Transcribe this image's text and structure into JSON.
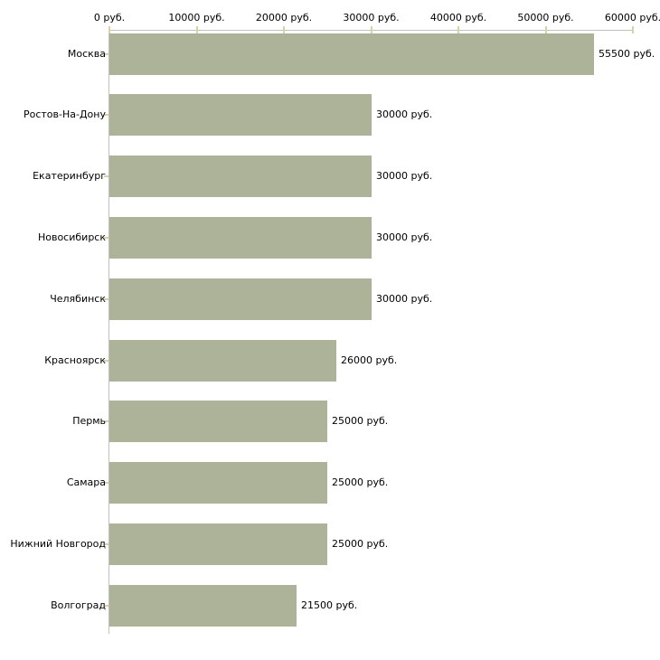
{
  "chart_data": {
    "type": "bar",
    "orientation": "horizontal",
    "title": "",
    "xlabel": "",
    "ylabel": "",
    "xlim": [
      0,
      60000
    ],
    "grid": false,
    "legend": false,
    "axis_position": "top",
    "categories": [
      "Москва",
      "Ростов-На-Дону",
      "Екатеринбург",
      "Новосибирск",
      "Челябинск",
      "Красноярск",
      "Пермь",
      "Самара",
      "Нижний Новгород",
      "Волгоград"
    ],
    "values": [
      55500,
      30000,
      30000,
      30000,
      30000,
      26000,
      25000,
      25000,
      25000,
      21500
    ],
    "value_labels": [
      "55500 руб.",
      "30000 руб.",
      "30000 руб.",
      "30000 руб.",
      "30000 руб.",
      "26000 руб.",
      "25000 руб.",
      "25000 руб.",
      "25000 руб.",
      "21500 руб."
    ],
    "x_axis": {
      "ticks": [
        0,
        10000,
        20000,
        30000,
        40000,
        50000,
        60000
      ],
      "tick_labels": [
        "0 руб.",
        "10000 руб.",
        "20000 руб.",
        "30000 руб.",
        "40000 руб.",
        "50000 руб.",
        "60000 руб."
      ]
    },
    "colors": {
      "bar": "#adb398",
      "axis_line": "#c0c0c0",
      "tick_mark": "#d8d2a6",
      "text": "#000000",
      "background": "#ffffff"
    }
  }
}
